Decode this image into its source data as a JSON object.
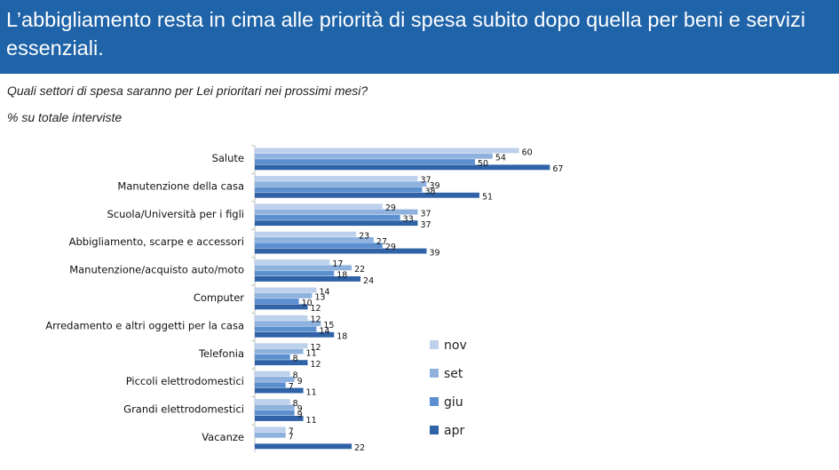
{
  "header": {
    "title": "L’abbigliamento resta in cima alle priorità di spesa subito dopo quella per beni e servizi essenziali."
  },
  "question": "Quali settori di spesa saranno per Lei prioritari nei prossimi mesi?",
  "unit_note": "% su totale interviste",
  "colors": {
    "header_bg": "#1f63a8",
    "nov": "#bed1ec",
    "set": "#8fb1de",
    "giu": "#5b8fcf",
    "apr": "#2f62a6"
  },
  "chart_data": {
    "type": "bar",
    "orientation": "horizontal",
    "categories": [
      "Salute",
      "Manutenzione della casa",
      "Scuola/Università per i figli",
      "Abbigliamento, scarpe e accessori",
      "Manutenzione/acquisto auto/moto",
      "Computer",
      "Arredamento e altri oggetti per la casa",
      "Telefonia",
      "Piccoli elettrodomestici",
      "Grandi elettrodomestici",
      "Vacanze"
    ],
    "series": [
      {
        "name": "nov",
        "color": "#bed1ec",
        "values": [
          60,
          37,
          29,
          23,
          17,
          14,
          12,
          12,
          8,
          8,
          7
        ]
      },
      {
        "name": "set",
        "color": "#8fb1de",
        "values": [
          54,
          39,
          37,
          27,
          22,
          13,
          15,
          11,
          9,
          9,
          7
        ]
      },
      {
        "name": "giu",
        "color": "#5b8fcf",
        "values": [
          50,
          38,
          33,
          29,
          18,
          10,
          14,
          8,
          7,
          9,
          null
        ]
      },
      {
        "name": "apr",
        "color": "#2f62a6",
        "values": [
          67,
          51,
          37,
          39,
          24,
          12,
          18,
          12,
          11,
          11,
          22
        ]
      }
    ],
    "legend": [
      "nov",
      "set",
      "giu",
      "apr"
    ],
    "legend_position": "right",
    "grid": false
  }
}
